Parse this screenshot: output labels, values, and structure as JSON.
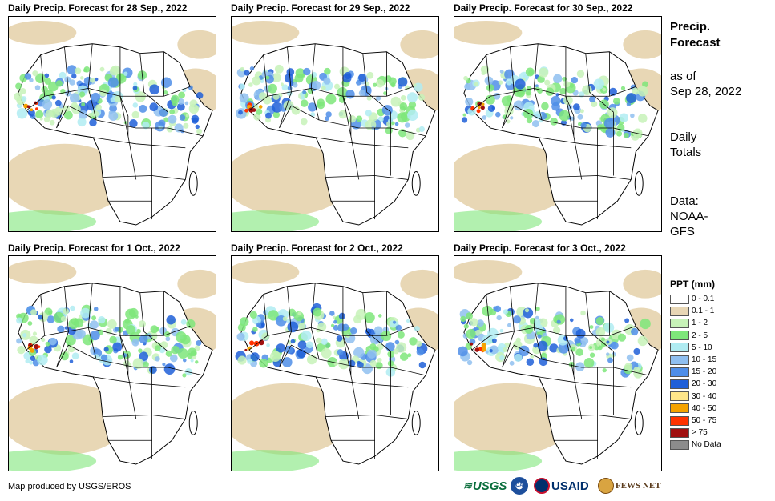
{
  "panels": [
    {
      "title": "Daily Precip. Forecast for 28  Sep., 2022"
    },
    {
      "title": "Daily Precip. Forecast for 29  Sep., 2022"
    },
    {
      "title": "Daily Precip. Forecast for 30  Sep., 2022"
    },
    {
      "title": "Daily Precip. Forecast for 1  Oct., 2022"
    },
    {
      "title": "Daily Precip. Forecast for 2  Oct., 2022"
    },
    {
      "title": "Daily Precip. Forecast for 3  Oct., 2022"
    }
  ],
  "sidebar": {
    "title_line1": "Precip.",
    "title_line2": "Forecast",
    "as_of_line1": "as of",
    "as_of_line2": "Sep 28, 2022",
    "totals_line1": "Daily",
    "totals_line2": "Totals",
    "data_line1": "Data:",
    "data_line2": "NOAA-",
    "data_line3": "GFS"
  },
  "legend": {
    "title": "PPT (mm)",
    "items": [
      {
        "label": "0 - 0.1",
        "color": "#ffffff"
      },
      {
        "label": "0.1 - 1",
        "color": "#e8d7b5"
      },
      {
        "label": "1 - 2",
        "color": "#c7f2b8"
      },
      {
        "label": "2 - 5",
        "color": "#7ee67a"
      },
      {
        "label": "5 - 10",
        "color": "#b0ecf2"
      },
      {
        "label": "10 - 15",
        "color": "#8fbff0"
      },
      {
        "label": "15 - 20",
        "color": "#4f8ee8"
      },
      {
        "label": "20 - 30",
        "color": "#1f5fd8"
      },
      {
        "label": "30 - 40",
        "color": "#ffe68a"
      },
      {
        "label": "40 - 50",
        "color": "#f5a300"
      },
      {
        "label": "50 - 75",
        "color": "#ff3300"
      },
      {
        "label": "> 75",
        "color": "#a01010"
      },
      {
        "label": "No Data",
        "color": "#8c8c8c"
      }
    ]
  },
  "footer": {
    "credit": "Map produced by USGS/EROS",
    "logos": [
      "USGS",
      "NOAA",
      "USAID",
      "FEWS NET"
    ]
  }
}
